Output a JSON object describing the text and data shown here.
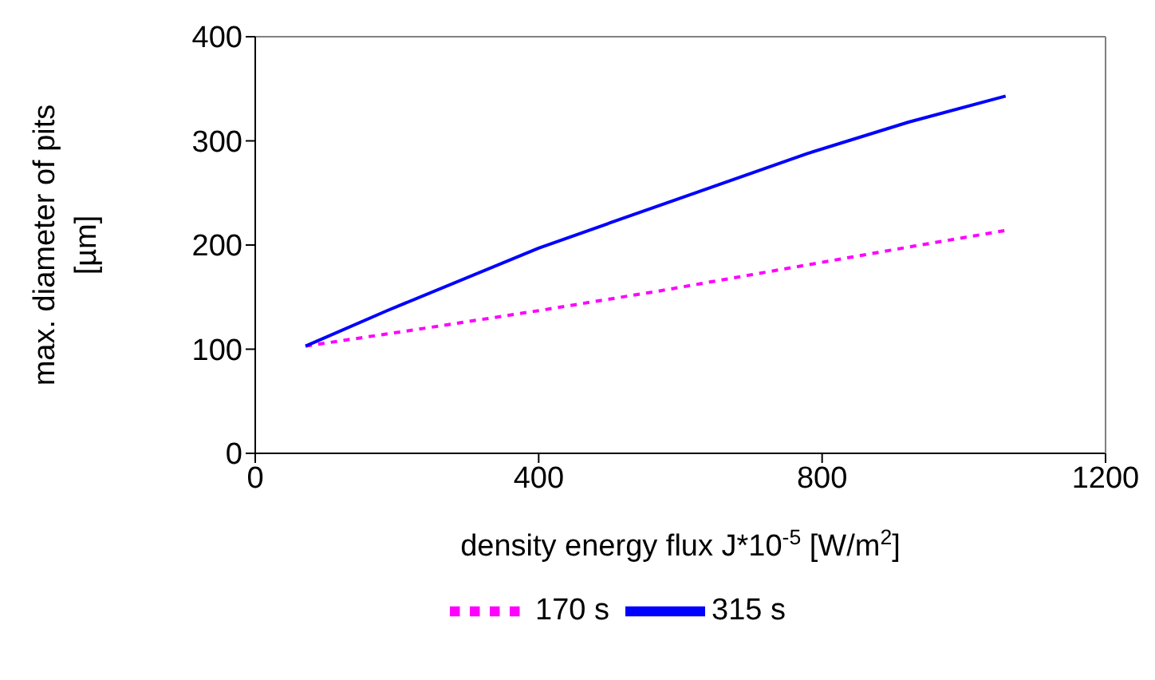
{
  "chart_data": {
    "type": "line",
    "xlabel": "density energy flux J*10$^{-5}$ [W/m$^{2}$]",
    "ylabel": "max. diameter of pits [µm]",
    "xlim": [
      0,
      1200
    ],
    "xticks": [
      0,
      400,
      800,
      1200
    ],
    "ylim": [
      0,
      400
    ],
    "yticks": [
      0,
      100,
      200,
      300,
      400
    ],
    "grid": false,
    "legend": "bottom",
    "marker": "none",
    "series": [
      {
        "name": "170 s",
        "color": "#ff00ff",
        "line_style": "dashed",
        "x": [
          71,
          219,
          400,
          571,
          930,
          1059
        ],
        "values": [
          103,
          118,
          137,
          156,
          199,
          214
        ]
      },
      {
        "name": "315 s",
        "color": "#0000ff",
        "line_style": "solid",
        "x": [
          71,
          186,
          400,
          512,
          780,
          922,
          1059
        ],
        "values": [
          103,
          137,
          197,
          224,
          288,
          318,
          343
        ]
      }
    ]
  }
}
